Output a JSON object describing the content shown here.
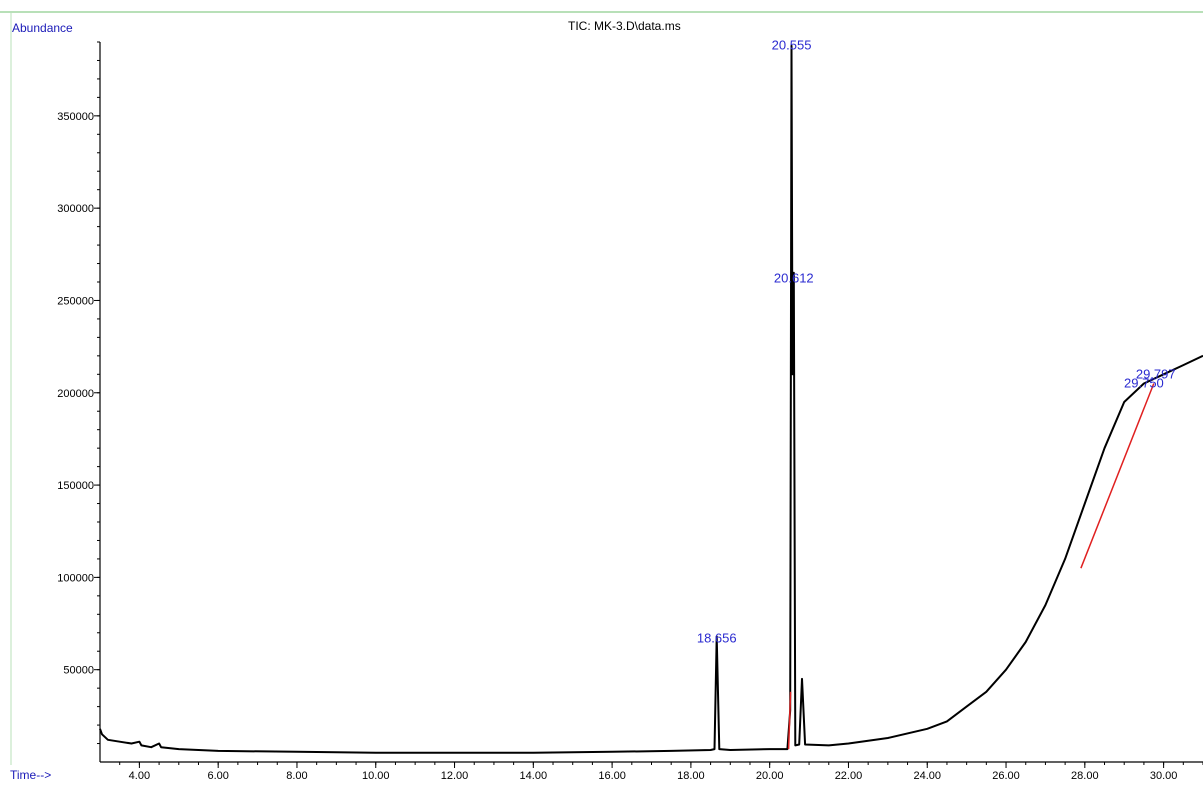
{
  "chart_data": {
    "type": "line",
    "title": "TIC: MK-3.D\\data.ms",
    "ylabel": "Abundance",
    "xlabel": "Time-->",
    "xlim": [
      3.0,
      31.0
    ],
    "ylim": [
      0,
      390000
    ],
    "x_ticks": [
      4.0,
      6.0,
      8.0,
      10.0,
      12.0,
      14.0,
      16.0,
      18.0,
      20.0,
      22.0,
      24.0,
      26.0,
      28.0,
      30.0
    ],
    "x_tick_labels": [
      "4.00",
      "6.00",
      "8.00",
      "10.00",
      "12.00",
      "14.00",
      "16.00",
      "18.00",
      "20.00",
      "22.00",
      "24.00",
      "26.00",
      "28.00",
      "30.00"
    ],
    "y_ticks": [
      50000,
      100000,
      150000,
      200000,
      250000,
      300000,
      350000
    ],
    "y_tick_labels": [
      "50000",
      "100000",
      "150000",
      "200000",
      "250000",
      "300000",
      "350000"
    ],
    "grid": false,
    "series": [
      {
        "color": "#000000",
        "points": [
          [
            3.0,
            18000
          ],
          [
            3.05,
            15000
          ],
          [
            3.2,
            12000
          ],
          [
            3.5,
            11000
          ],
          [
            3.8,
            10000
          ],
          [
            4.0,
            11000
          ],
          [
            4.05,
            9000
          ],
          [
            4.3,
            8000
          ],
          [
            4.5,
            10000
          ],
          [
            4.55,
            8000
          ],
          [
            5.0,
            7000
          ],
          [
            6.0,
            6000
          ],
          [
            8.0,
            5500
          ],
          [
            10.0,
            5000
          ],
          [
            12.0,
            5000
          ],
          [
            14.0,
            5000
          ],
          [
            16.0,
            5500
          ],
          [
            17.5,
            6000
          ],
          [
            18.5,
            6500
          ],
          [
            18.6,
            7000
          ],
          [
            18.656,
            68000
          ],
          [
            18.72,
            7000
          ],
          [
            19.0,
            6500
          ],
          [
            20.0,
            7000
          ],
          [
            20.45,
            7000
          ],
          [
            20.52,
            28000
          ],
          [
            20.555,
            388000
          ],
          [
            20.58,
            210000
          ],
          [
            20.612,
            265000
          ],
          [
            20.65,
            9000
          ],
          [
            20.75,
            9500
          ],
          [
            20.82,
            45000
          ],
          [
            20.9,
            9500
          ],
          [
            21.5,
            9000
          ],
          [
            22.0,
            10000
          ],
          [
            23.0,
            13000
          ],
          [
            24.0,
            18000
          ],
          [
            24.5,
            22000
          ],
          [
            25.0,
            30000
          ],
          [
            25.5,
            38000
          ],
          [
            26.0,
            50000
          ],
          [
            26.5,
            65000
          ],
          [
            27.0,
            85000
          ],
          [
            27.5,
            110000
          ],
          [
            28.0,
            140000
          ],
          [
            28.5,
            170000
          ],
          [
            29.0,
            195000
          ],
          [
            29.5,
            205000
          ],
          [
            30.0,
            210000
          ],
          [
            30.5,
            215000
          ],
          [
            31.0,
            220000
          ]
        ]
      },
      {
        "color": "#e02020",
        "points": [
          [
            27.9,
            105000
          ],
          [
            29.75,
            205000
          ]
        ]
      },
      {
        "color": "#e02020",
        "points": [
          [
            20.48,
            7000
          ],
          [
            20.53,
            38000
          ]
        ]
      }
    ],
    "annotations": [
      {
        "text": "20.555",
        "x": 20.555,
        "y": 388000
      },
      {
        "text": "20.612",
        "x": 20.612,
        "y": 262000
      },
      {
        "text": "18.656",
        "x": 18.656,
        "y": 67000
      },
      {
        "text": "29.750",
        "x": 29.5,
        "y": 205000
      },
      {
        "text": "29.797",
        "x": 29.8,
        "y": 210000
      }
    ]
  }
}
